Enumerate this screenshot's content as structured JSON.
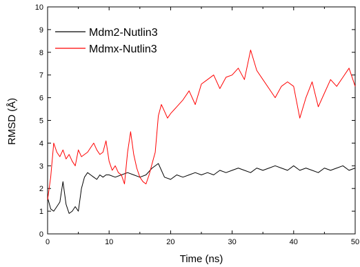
{
  "chart_data": {
    "type": "line",
    "title": "",
    "xlabel": "Time (ns)",
    "ylabel": "RMSD (Å)",
    "xlim": [
      0,
      50
    ],
    "ylim": [
      0,
      10
    ],
    "xticks": [
      0,
      10,
      20,
      30,
      40,
      50
    ],
    "yticks": [
      0,
      1,
      2,
      3,
      4,
      5,
      6,
      7,
      8,
      9,
      10
    ],
    "grid": false,
    "legend_position": "top-left",
    "series": [
      {
        "name": "Mdm2-Nutlin3",
        "color": "#000000",
        "x": [
          0,
          0.5,
          1,
          1.5,
          2,
          2.5,
          3,
          3.5,
          4,
          4.5,
          5,
          5.5,
          6,
          6.5,
          7,
          7.5,
          8,
          8.5,
          9,
          9.5,
          10,
          11,
          12,
          13,
          14,
          15,
          16,
          17,
          18,
          19,
          20,
          21,
          22,
          23,
          24,
          25,
          26,
          27,
          28,
          29,
          30,
          31,
          32,
          33,
          34,
          35,
          36,
          37,
          38,
          39,
          40,
          41,
          42,
          43,
          44,
          45,
          46,
          47,
          48,
          49,
          50
        ],
        "values": [
          1.6,
          1.1,
          1.0,
          1.2,
          1.4,
          2.3,
          1.3,
          0.9,
          1.0,
          1.2,
          1.0,
          2.0,
          2.5,
          2.7,
          2.6,
          2.5,
          2.4,
          2.6,
          2.5,
          2.6,
          2.6,
          2.5,
          2.6,
          2.7,
          2.6,
          2.5,
          2.6,
          2.9,
          3.1,
          2.5,
          2.4,
          2.6,
          2.5,
          2.6,
          2.7,
          2.6,
          2.7,
          2.6,
          2.8,
          2.7,
          2.8,
          2.9,
          2.8,
          2.7,
          2.9,
          2.8,
          2.9,
          3.0,
          2.9,
          2.8,
          3.0,
          2.8,
          2.9,
          2.8,
          2.7,
          2.9,
          2.8,
          2.9,
          3.0,
          2.8,
          2.9
        ]
      },
      {
        "name": "Mdmx-Nutlin3",
        "color": "#ff0000",
        "x": [
          0,
          0.5,
          1,
          1.5,
          2,
          2.5,
          3,
          3.5,
          4,
          4.5,
          5,
          5.5,
          6,
          6.5,
          7,
          7.5,
          8,
          8.5,
          9,
          9.5,
          10,
          10.5,
          11,
          11.5,
          12,
          12.5,
          13,
          13.5,
          14,
          14.5,
          15,
          15.5,
          16,
          16.5,
          17,
          17.5,
          18,
          18.5,
          19,
          19.5,
          20,
          21,
          22,
          23,
          24,
          25,
          26,
          27,
          28,
          29,
          30,
          31,
          32,
          33,
          34,
          35,
          36,
          37,
          38,
          39,
          40,
          41,
          42,
          43,
          44,
          45,
          46,
          47,
          48,
          49,
          50
        ],
        "values": [
          1.5,
          2.5,
          4.0,
          3.6,
          3.4,
          3.7,
          3.3,
          3.5,
          3.2,
          3.0,
          3.7,
          3.4,
          3.5,
          3.6,
          3.8,
          4.0,
          3.7,
          3.5,
          3.6,
          4.1,
          3.2,
          2.8,
          3.0,
          2.7,
          2.6,
          2.2,
          3.6,
          4.5,
          3.5,
          2.9,
          2.5,
          2.3,
          2.2,
          2.6,
          3.1,
          3.6,
          5.2,
          5.7,
          5.4,
          5.1,
          5.3,
          5.6,
          5.9,
          6.3,
          5.7,
          6.6,
          6.8,
          7.0,
          6.4,
          6.9,
          7.0,
          7.3,
          6.8,
          8.1,
          7.2,
          6.8,
          6.4,
          6.0,
          6.5,
          6.7,
          6.5,
          5.1,
          6.0,
          6.7,
          5.6,
          6.2,
          6.8,
          6.5,
          6.9,
          7.3,
          6.5
        ]
      }
    ]
  }
}
